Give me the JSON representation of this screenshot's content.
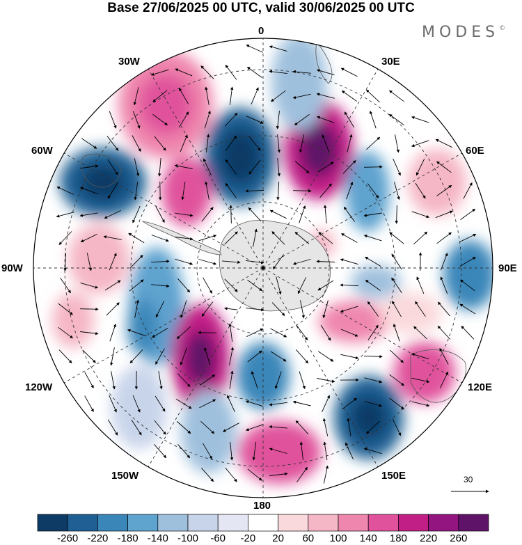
{
  "title": "Base 27/06/2025 00 UTC, valid 30/06/2025 00 UTC",
  "logo": "MODES",
  "logo_mark": "©",
  "longitude_labels": {
    "top": "0",
    "bottom": "180",
    "left": "90W",
    "right": "90E",
    "l30w": "30W",
    "l60w": "60W",
    "l120w": "120W",
    "l150w": "150W",
    "l30e": "30E",
    "l60e": "60E",
    "l120e": "120E",
    "l150e": "150E"
  },
  "vector_scale_label": "30",
  "colorbar": {
    "colors": [
      "#0d3b66",
      "#1f5f93",
      "#3a86b9",
      "#5fa3cf",
      "#9fc0dd",
      "#c8d4ea",
      "#e4e6f3",
      "#ffffff",
      "#fad9dc",
      "#f5b6c5",
      "#ef86ad",
      "#e0529c",
      "#c21f86",
      "#93157f",
      "#5e1368"
    ],
    "labels": [
      "-260",
      "-220",
      "-180",
      "-140",
      "-100",
      "-60",
      "-20",
      "20",
      "60",
      "100",
      "140",
      "180",
      "220",
      "260"
    ]
  }
}
